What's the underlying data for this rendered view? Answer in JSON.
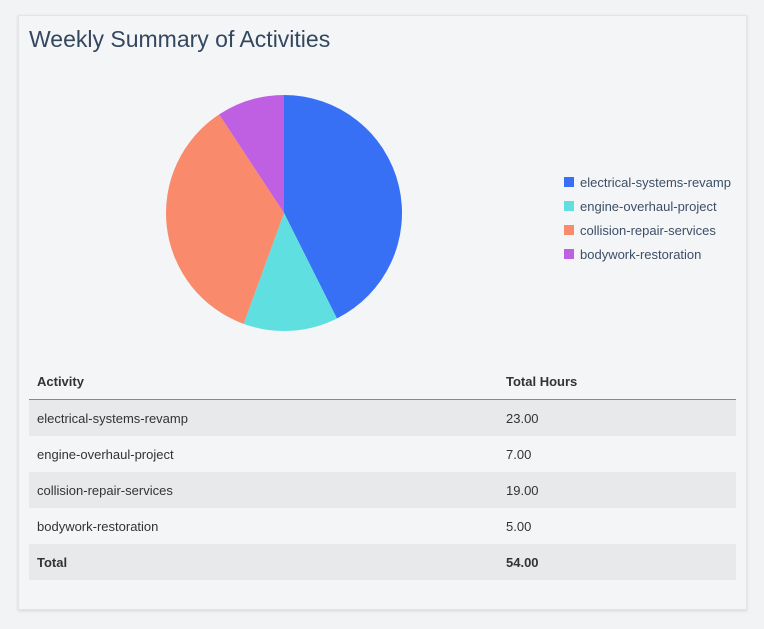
{
  "title": "Weekly Summary of Activities",
  "chart_data": {
    "type": "pie",
    "categories": [
      "electrical-systems-revamp",
      "engine-overhaul-project",
      "collision-repair-services",
      "bodywork-restoration"
    ],
    "values": [
      23,
      7,
      19,
      5
    ],
    "colors": [
      "#3870f5",
      "#5fdfe0",
      "#f98a6b",
      "#bf60e2"
    ],
    "legend_position": "right"
  },
  "table": {
    "headers": [
      "Activity",
      "Total Hours"
    ],
    "rows": [
      [
        "electrical-systems-revamp",
        "23.00"
      ],
      [
        "engine-overhaul-project",
        "7.00"
      ],
      [
        "collision-repair-services",
        "19.00"
      ],
      [
        "bodywork-restoration",
        "5.00"
      ]
    ],
    "total": [
      "Total",
      "54.00"
    ]
  }
}
